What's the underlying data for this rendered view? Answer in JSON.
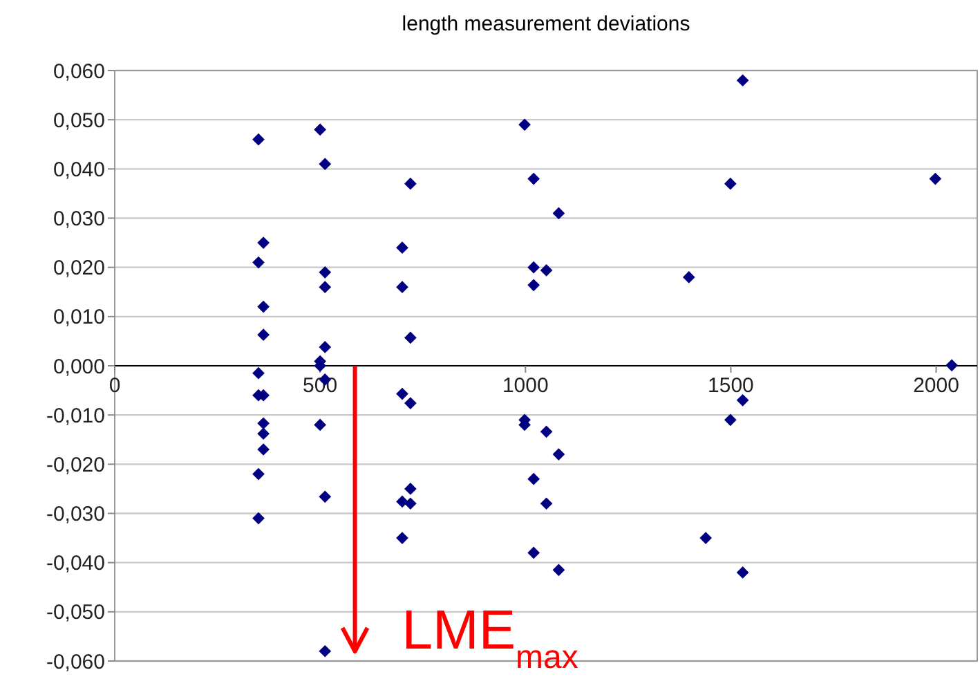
{
  "chart_data": {
    "type": "scatter",
    "title": "length measurement deviations",
    "x": [
      350,
      350,
      350,
      350,
      350,
      350,
      362,
      362,
      362,
      362,
      362,
      362,
      362,
      500,
      500,
      500,
      500,
      512,
      512,
      512,
      512,
      512,
      512,
      512,
      700,
      700,
      700,
      700,
      700,
      720,
      720,
      720,
      720,
      720,
      998,
      998,
      998,
      1020,
      1020,
      1020,
      1020,
      1020,
      1051,
      1051,
      1051,
      1081,
      1081,
      1081,
      1398,
      1439,
      1499,
      1499,
      1529,
      1529,
      1529,
      1998,
      2038
    ],
    "series": [
      {
        "color": "#000080",
        "values": [
          0.046,
          0.021,
          -0.0015,
          -0.006,
          -0.022,
          -0.031,
          0.025,
          0.012,
          0.0063,
          -0.006,
          -0.0117,
          -0.0138,
          -0.017,
          0.048,
          0.0009,
          0.0,
          -0.012,
          0.041,
          0.019,
          0.016,
          0.0038,
          -0.0028,
          -0.0266,
          -0.058,
          0.024,
          0.016,
          -0.0057,
          -0.0276,
          -0.035,
          0.037,
          0.0057,
          -0.0076,
          -0.025,
          -0.028,
          0.049,
          -0.011,
          -0.012,
          0.038,
          0.02,
          0.0164,
          -0.023,
          -0.038,
          0.0194,
          -0.0134,
          -0.028,
          0.031,
          -0.018,
          -0.0415,
          0.018,
          -0.035,
          0.037,
          -0.011,
          0.058,
          -0.007,
          -0.042,
          0.038,
          0.0001
        ]
      }
    ],
    "xlim": [
      0,
      2100
    ],
    "xticks": [
      0,
      500,
      1000,
      1500,
      2000
    ],
    "ylim": [
      -0.06,
      0.06
    ],
    "yticks": [
      {
        "value": -0.06,
        "label": "-0,060"
      },
      {
        "value": -0.05,
        "label": "-0,050"
      },
      {
        "value": -0.04,
        "label": "-0,040"
      },
      {
        "value": -0.03,
        "label": "-0,030"
      },
      {
        "value": -0.02,
        "label": "-0,020"
      },
      {
        "value": -0.01,
        "label": "-0,010"
      },
      {
        "value": 0,
        "label": "0,000"
      },
      {
        "value": 0.01,
        "label": "0,010"
      },
      {
        "value": 0.02,
        "label": "0,020"
      },
      {
        "value": 0.03,
        "label": "0,030"
      },
      {
        "value": 0.04,
        "label": "0,040"
      },
      {
        "value": 0.05,
        "label": "0,050"
      },
      {
        "value": 0.06,
        "label": "0,060"
      }
    ],
    "grid": "y",
    "marker": "diamond",
    "annotations": [
      "LME$_{max}$"
    ]
  }
}
